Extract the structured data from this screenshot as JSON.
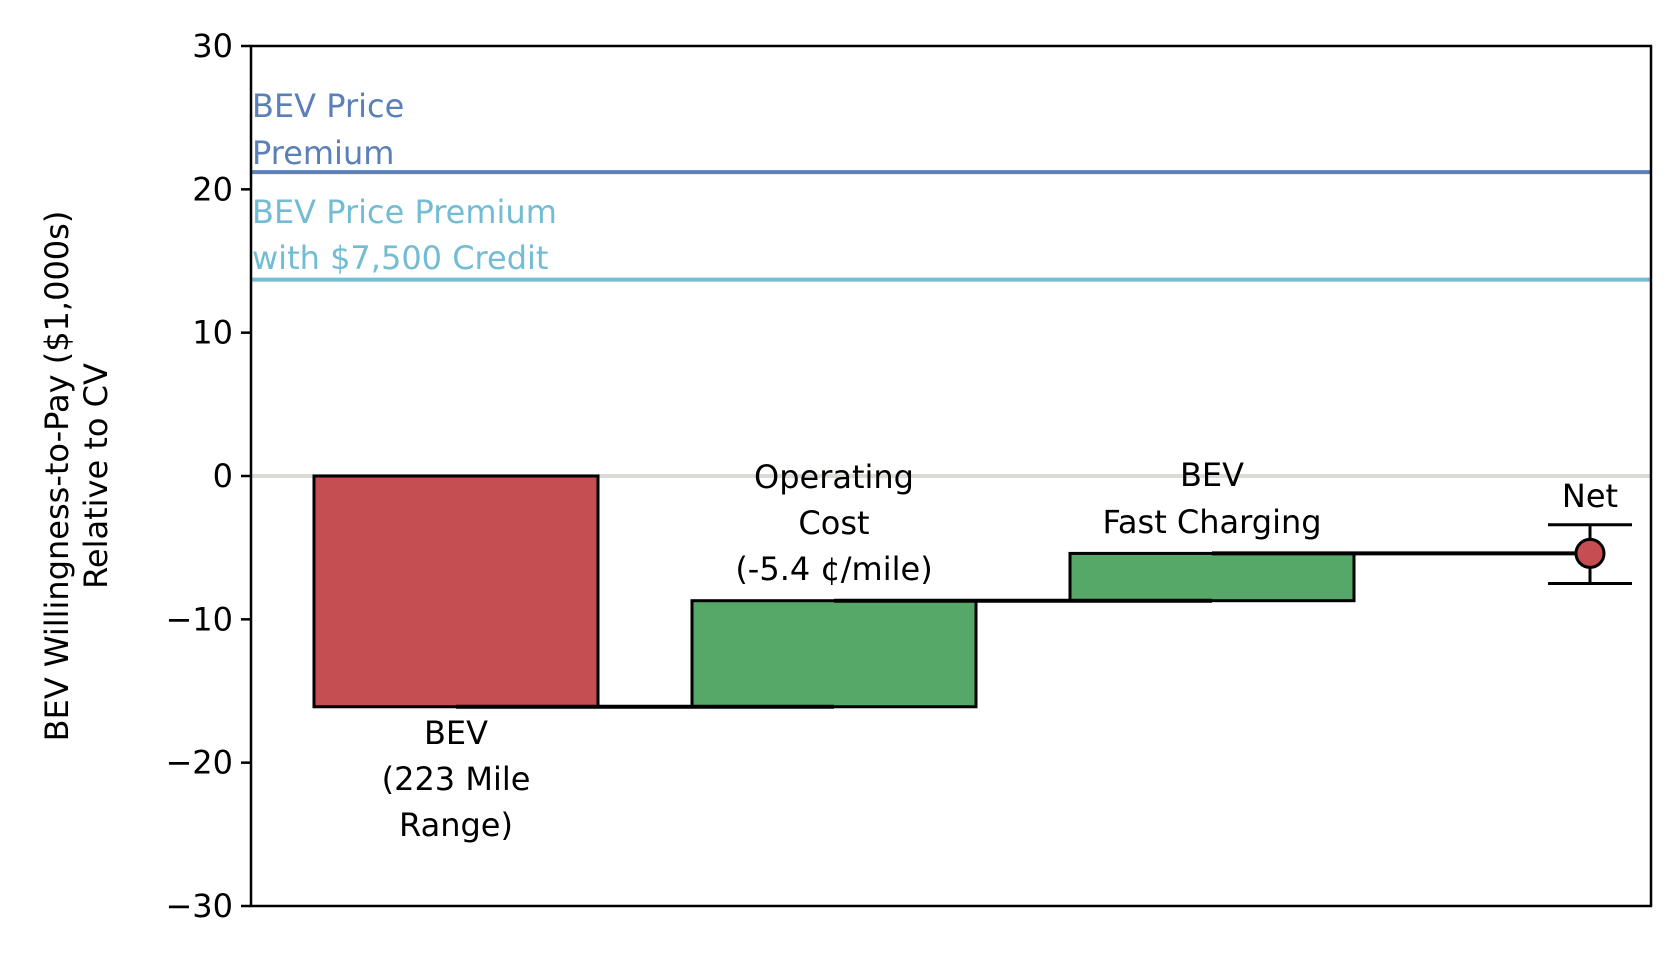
{
  "chart_data": {
    "type": "bar",
    "subtype": "waterfall",
    "ylabel_lines": [
      "BEV Willingness-to-Pay ($1,000s)",
      "Relative to CV"
    ],
    "ylim": [
      -30,
      30
    ],
    "yticks": [
      30,
      20,
      10,
      0,
      -10,
      -20,
      -30
    ],
    "ytick_labels": [
      "30",
      "20",
      "10",
      "0",
      "−10",
      "−20",
      "−30"
    ],
    "grid": false,
    "zero_line": {
      "value": 0,
      "color": "#d9dbd6"
    },
    "reference_lines": [
      {
        "name_lines": [
          "BEV Price",
          "Premium"
        ],
        "value": 21.2,
        "color": "#5b7fb8"
      },
      {
        "name_lines": [
          "BEV Price Premium",
          "with $7,500 Credit"
        ],
        "value": 13.7,
        "color": "#72bcd4"
      }
    ],
    "steps": [
      {
        "label_lines": [
          "BEV",
          "(223 Mile",
          "Range)"
        ],
        "start": 0,
        "end": -16.1,
        "color": "#c44e52",
        "label_position": "below"
      },
      {
        "label_lines": [
          "Operating",
          "Cost",
          "(-5.4 ¢/mile)"
        ],
        "start": -16.1,
        "end": -8.7,
        "color": "#55a868",
        "label_position": "above"
      },
      {
        "label_lines": [
          "BEV",
          "Fast Charging"
        ],
        "start": -8.7,
        "end": -5.4,
        "color": "#55a868",
        "label_position": "above"
      }
    ],
    "net": {
      "label": "Net",
      "value": -5.4,
      "error_low": -7.5,
      "error_high": -3.4,
      "color": "#c44e52"
    }
  }
}
